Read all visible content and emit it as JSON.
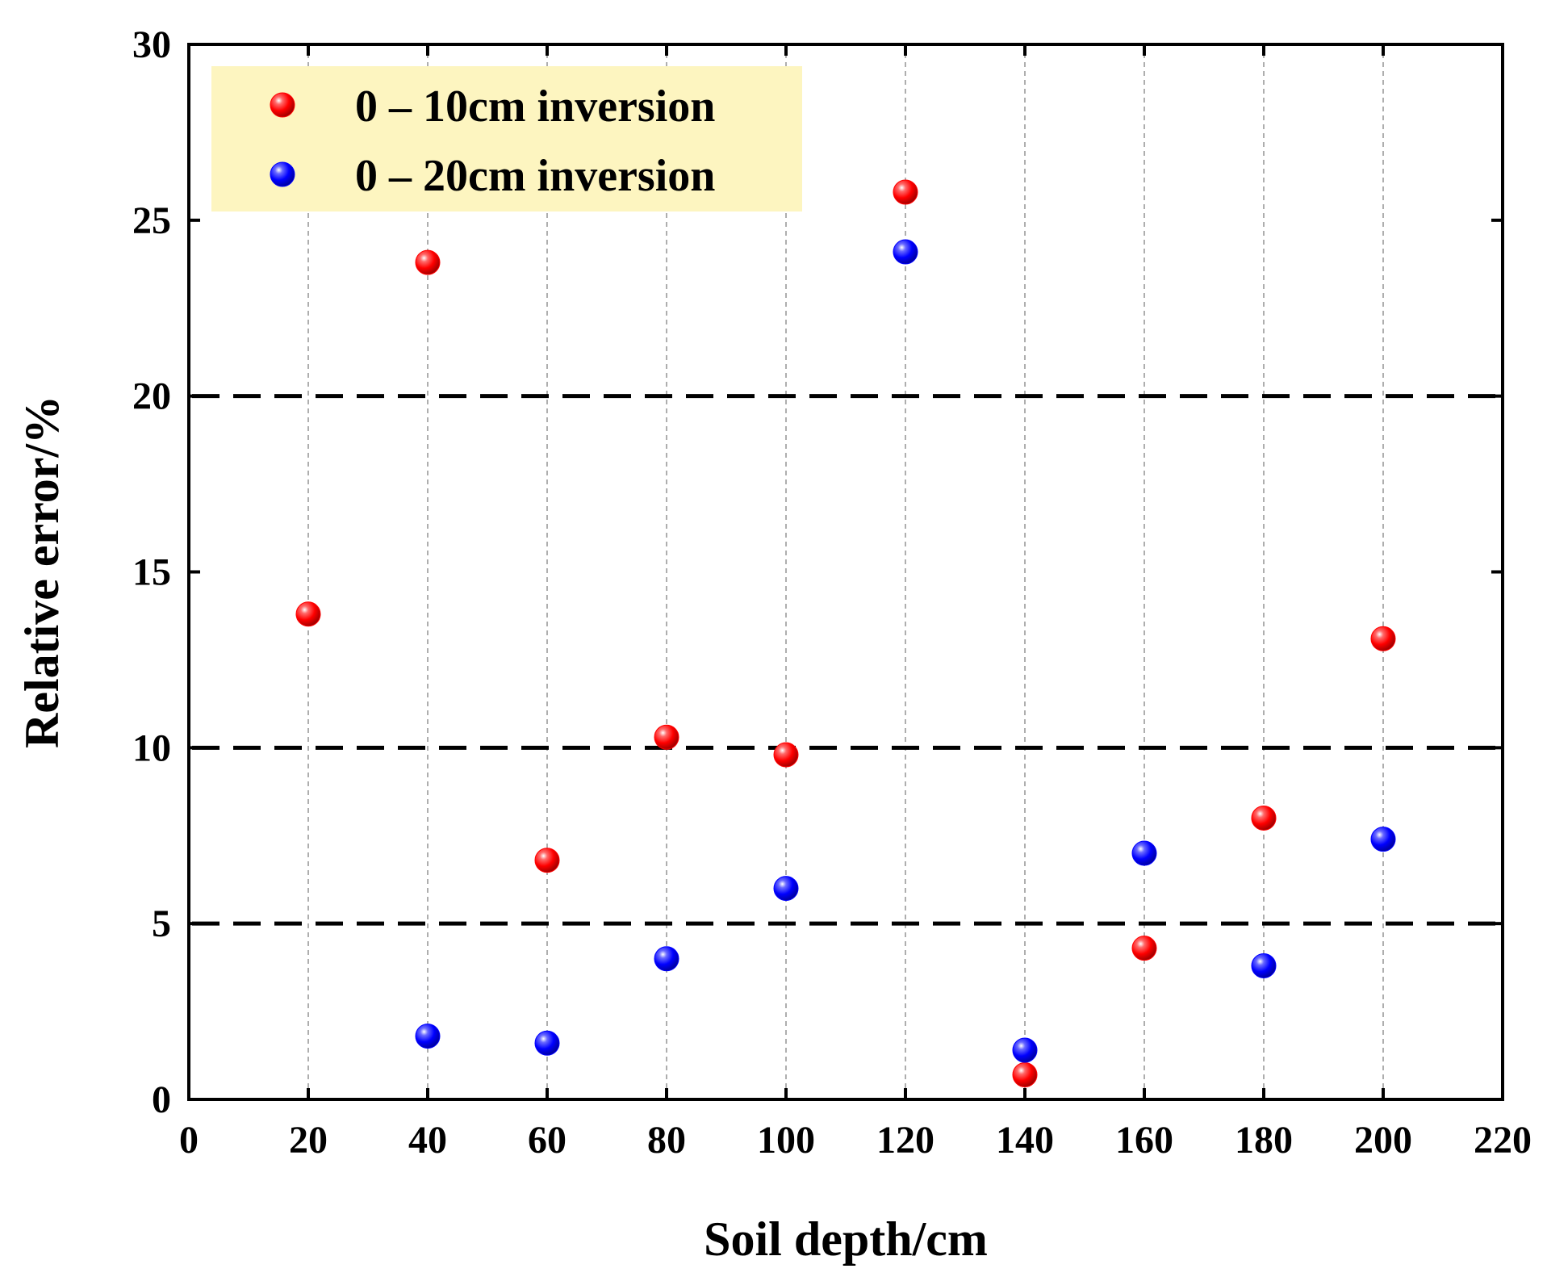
{
  "chart_data": {
    "type": "scatter",
    "title": "",
    "xlabel": "Soil depth/cm",
    "ylabel": "Relative error/%",
    "xlim": [
      0,
      220
    ],
    "ylim": [
      0,
      30
    ],
    "x_ticks": [
      0,
      20,
      40,
      60,
      80,
      100,
      120,
      140,
      160,
      180,
      200,
      220
    ],
    "y_ticks": [
      0,
      5,
      10,
      15,
      20,
      25,
      30
    ],
    "vertical_gridlines_at": [
      20,
      40,
      60,
      80,
      100,
      120,
      140,
      160,
      180,
      200
    ],
    "reference_lines_y": [
      5,
      10,
      20
    ],
    "legend_position": "top-left",
    "legend_background": "#fdf5c0",
    "series": [
      {
        "name": "0 – 10cm inversion",
        "color": "#ff0000",
        "x": [
          20,
          40,
          60,
          80,
          100,
          120,
          140,
          160,
          180,
          200
        ],
        "y": [
          13.8,
          23.8,
          6.8,
          10.3,
          9.8,
          25.8,
          0.7,
          4.3,
          8.0,
          13.1
        ]
      },
      {
        "name": "0 – 20cm inversion",
        "color": "#0000ff",
        "x": [
          40,
          60,
          80,
          100,
          120,
          140,
          160,
          180,
          200
        ],
        "y": [
          1.8,
          1.6,
          4.0,
          6.0,
          24.1,
          1.4,
          7.0,
          3.8,
          7.4
        ]
      }
    ]
  }
}
